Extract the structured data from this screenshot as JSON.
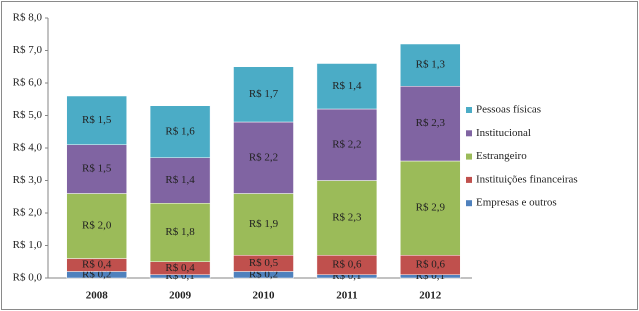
{
  "chart_data": {
    "type": "stacked_bar",
    "categories": [
      "2008",
      "2009",
      "2010",
      "2011",
      "2012"
    ],
    "series": [
      {
        "name": "Empresas e outros",
        "color": "#4f81bd",
        "values": [
          0.2,
          0.1,
          0.2,
          0.1,
          0.1
        ],
        "value_labels": [
          "R$ 0,2",
          "R$ 0,1",
          "R$ 0,2",
          "R$ 0,1",
          "R$ 0,1"
        ]
      },
      {
        "name": "Instituições financeiras",
        "color": "#c0504d",
        "values": [
          0.4,
          0.4,
          0.5,
          0.6,
          0.6
        ],
        "value_labels": [
          "R$ 0,4",
          "R$ 0,4",
          "R$ 0,5",
          "R$ 0,6",
          "R$ 0,6"
        ]
      },
      {
        "name": "Estrangeiro",
        "color": "#9bbb59",
        "values": [
          2.0,
          1.8,
          1.9,
          2.3,
          2.9
        ],
        "value_labels": [
          "R$ 2,0",
          "R$ 1,8",
          "R$ 1,9",
          "R$ 2,3",
          "R$ 2,9"
        ]
      },
      {
        "name": "Institucional",
        "color": "#8064a2",
        "values": [
          1.5,
          1.4,
          2.2,
          2.2,
          2.3
        ],
        "value_labels": [
          "R$ 1,5",
          "R$ 1,4",
          "R$ 2,2",
          "R$ 2,2",
          "R$ 2,3"
        ]
      },
      {
        "name": "Pessoas físicas",
        "color": "#4bacc6",
        "values": [
          1.5,
          1.6,
          1.7,
          1.4,
          1.3
        ],
        "value_labels": [
          "R$ 1,5",
          "R$ 1,6",
          "R$ 1,7",
          "R$ 1,4",
          "R$ 1,3"
        ]
      }
    ],
    "ylim": [
      0,
      8
    ],
    "yticks": [
      {
        "value": 0,
        "label": "R$ 0,0"
      },
      {
        "value": 1,
        "label": "R$ 1,0"
      },
      {
        "value": 2,
        "label": "R$ 2,0"
      },
      {
        "value": 3,
        "label": "R$ 3,0"
      },
      {
        "value": 4,
        "label": "R$ 4,0"
      },
      {
        "value": 5,
        "label": "R$ 5,0"
      },
      {
        "value": 6,
        "label": "R$ 6,0"
      },
      {
        "value": 7,
        "label": "R$ 7,0"
      },
      {
        "value": 8,
        "label": "R$ 8,0"
      }
    ],
    "grid": false,
    "legend": "right"
  }
}
